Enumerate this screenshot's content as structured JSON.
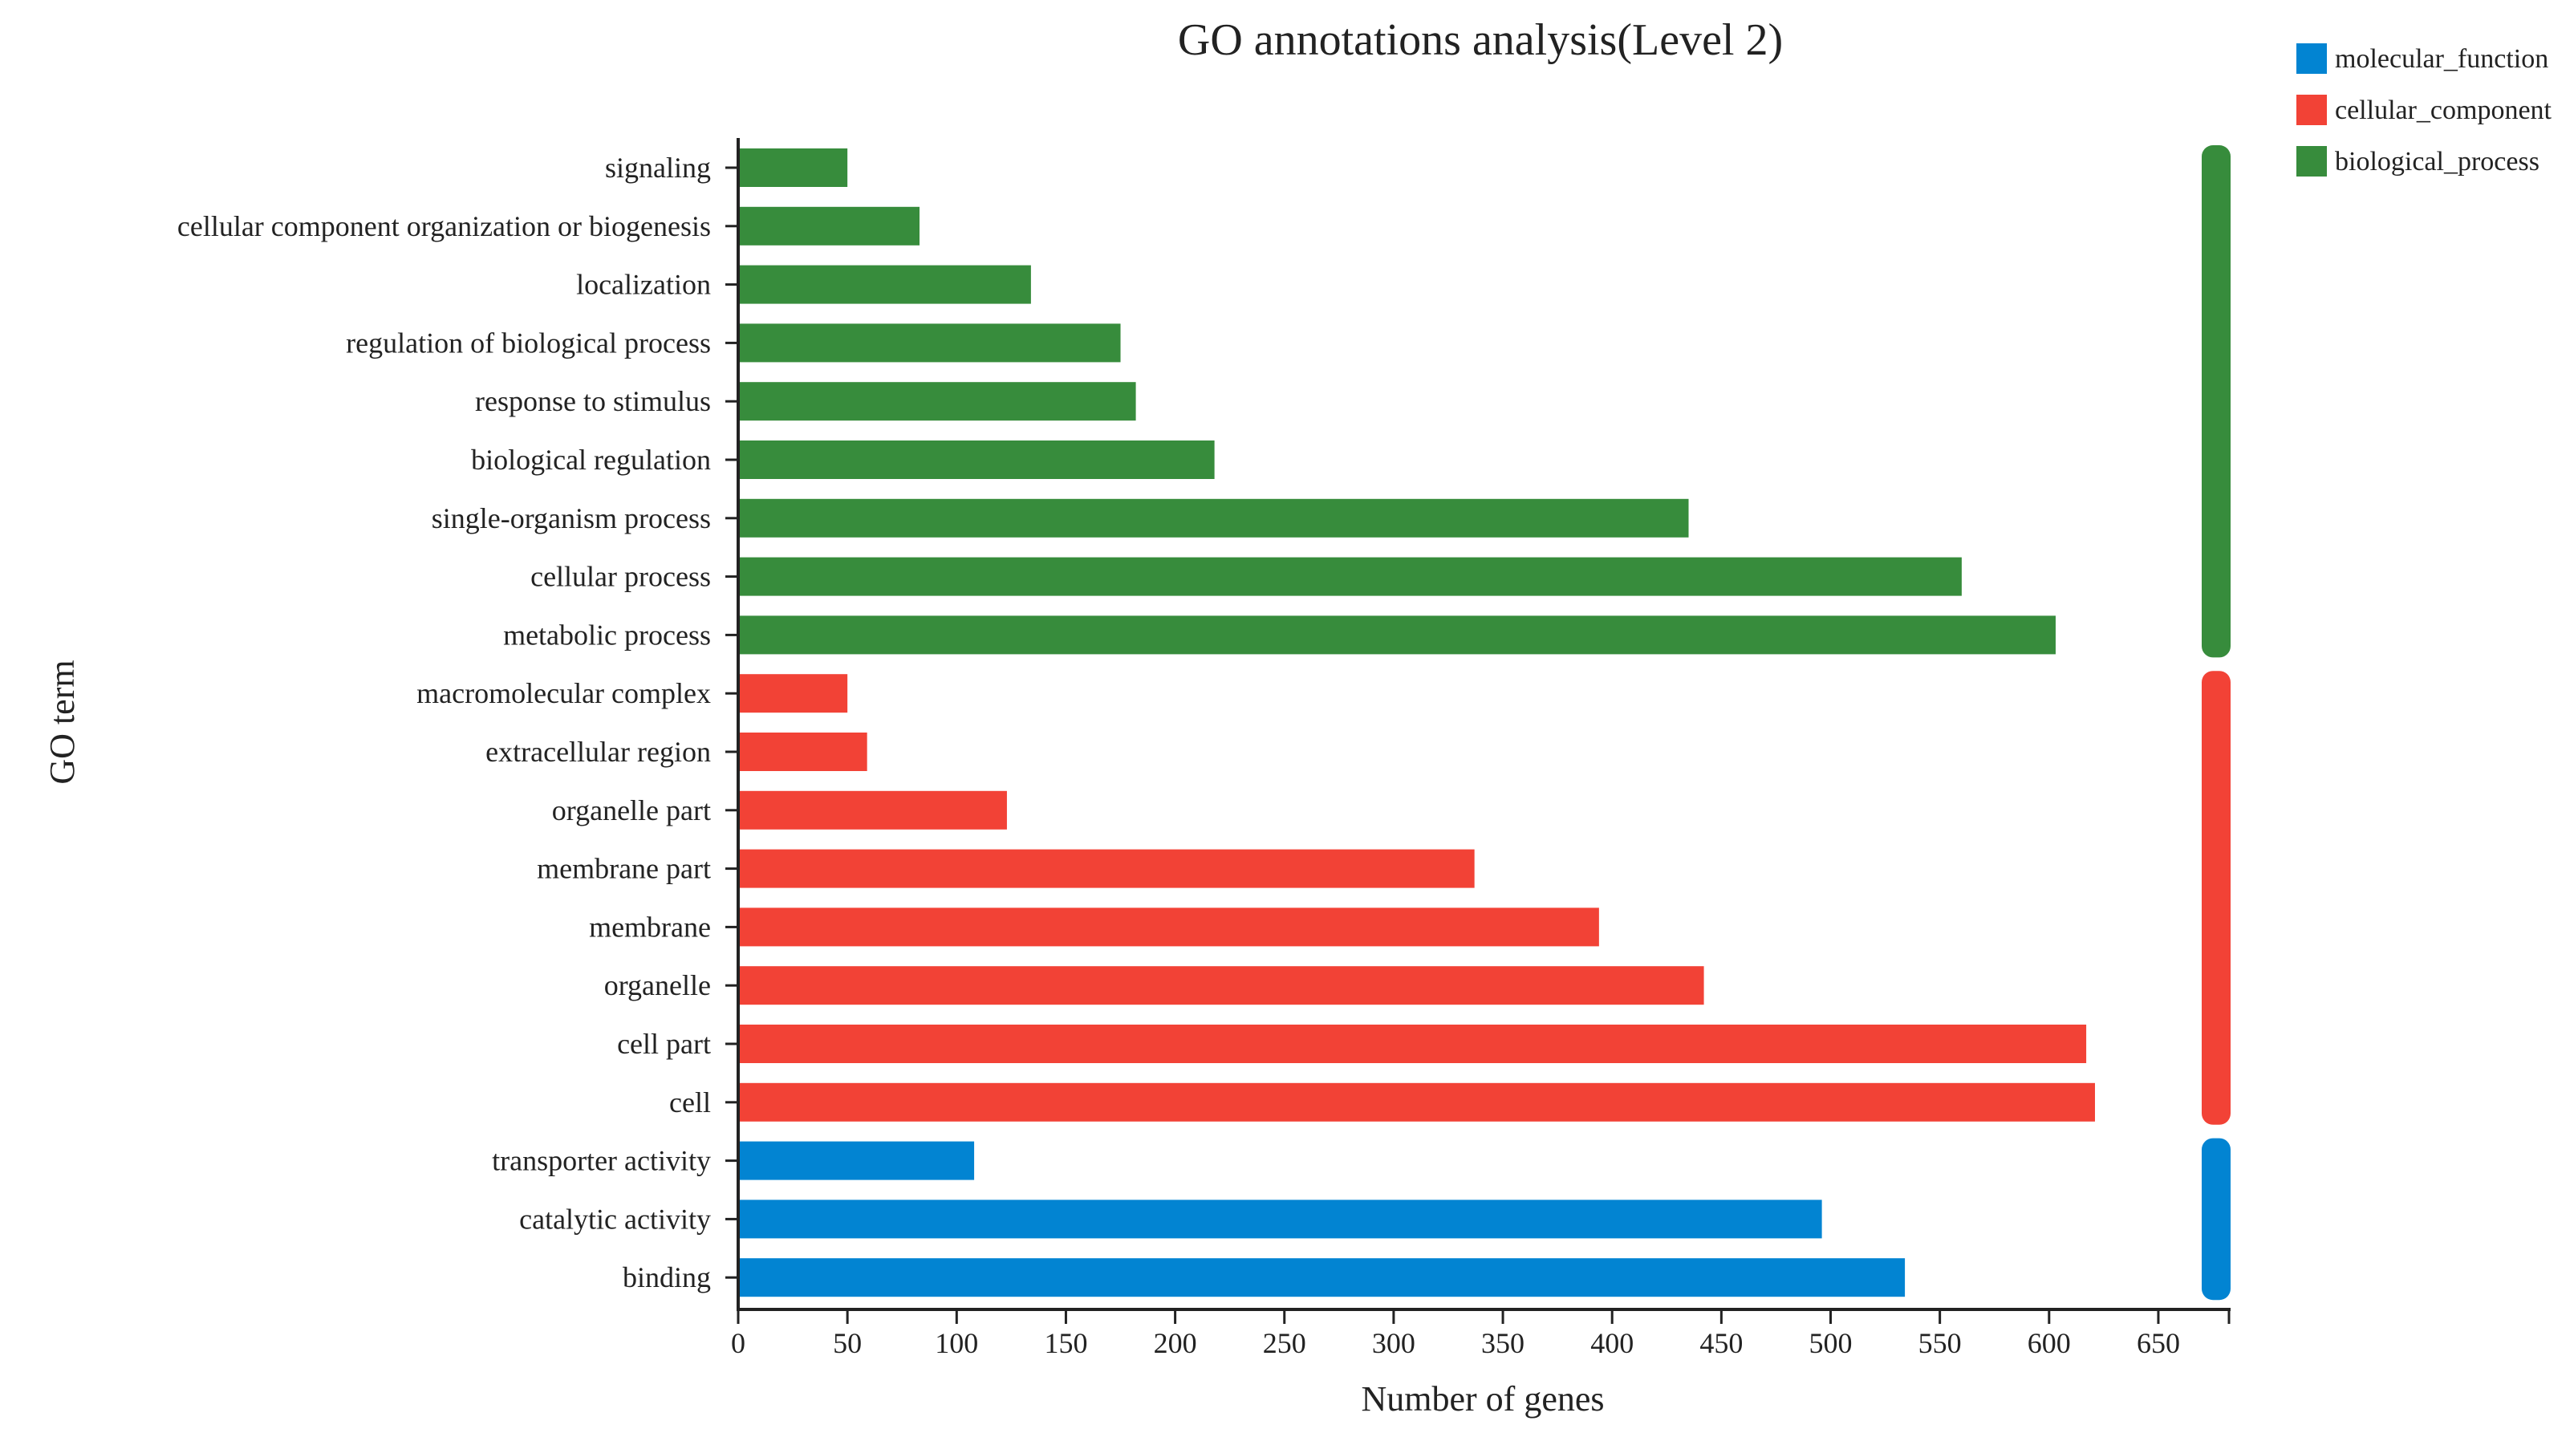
{
  "chart_data": {
    "type": "bar",
    "orientation": "horizontal",
    "title": "GO annotations analysis(Level 2)",
    "xlabel": "Number of genes",
    "ylabel": "GO term",
    "xlim": [
      0,
      680
    ],
    "xticks": [
      0,
      50,
      100,
      150,
      200,
      250,
      300,
      350,
      400,
      450,
      500,
      550,
      600,
      650
    ],
    "grid": false,
    "legend_position": "top-right",
    "groups": [
      {
        "name": "molecular_function",
        "color": "#0284D2"
      },
      {
        "name": "cellular_component",
        "color": "#F24236"
      },
      {
        "name": "biological_process",
        "color": "#378C3C"
      }
    ],
    "bars": [
      {
        "label": "signaling",
        "value": 50,
        "group": "biological_process"
      },
      {
        "label": "cellular component organization or biogenesis",
        "value": 83,
        "group": "biological_process"
      },
      {
        "label": "localization",
        "value": 134,
        "group": "biological_process"
      },
      {
        "label": "regulation of biological process",
        "value": 175,
        "group": "biological_process"
      },
      {
        "label": "response to stimulus",
        "value": 182,
        "group": "biological_process"
      },
      {
        "label": "biological regulation",
        "value": 218,
        "group": "biological_process"
      },
      {
        "label": "single-organism process",
        "value": 435,
        "group": "biological_process"
      },
      {
        "label": "cellular process",
        "value": 560,
        "group": "biological_process"
      },
      {
        "label": "metabolic process",
        "value": 603,
        "group": "biological_process"
      },
      {
        "label": "macromolecular complex",
        "value": 50,
        "group": "cellular_component"
      },
      {
        "label": "extracellular region",
        "value": 59,
        "group": "cellular_component"
      },
      {
        "label": "organelle part",
        "value": 123,
        "group": "cellular_component"
      },
      {
        "label": "membrane part",
        "value": 337,
        "group": "cellular_component"
      },
      {
        "label": "membrane",
        "value": 394,
        "group": "cellular_component"
      },
      {
        "label": "organelle",
        "value": 442,
        "group": "cellular_component"
      },
      {
        "label": "cell part",
        "value": 617,
        "group": "cellular_component"
      },
      {
        "label": "cell",
        "value": 621,
        "group": "cellular_component"
      },
      {
        "label": "transporter activity",
        "value": 108,
        "group": "molecular_function"
      },
      {
        "label": "catalytic activity",
        "value": 496,
        "group": "molecular_function"
      },
      {
        "label": "binding",
        "value": 534,
        "group": "molecular_function"
      }
    ]
  }
}
